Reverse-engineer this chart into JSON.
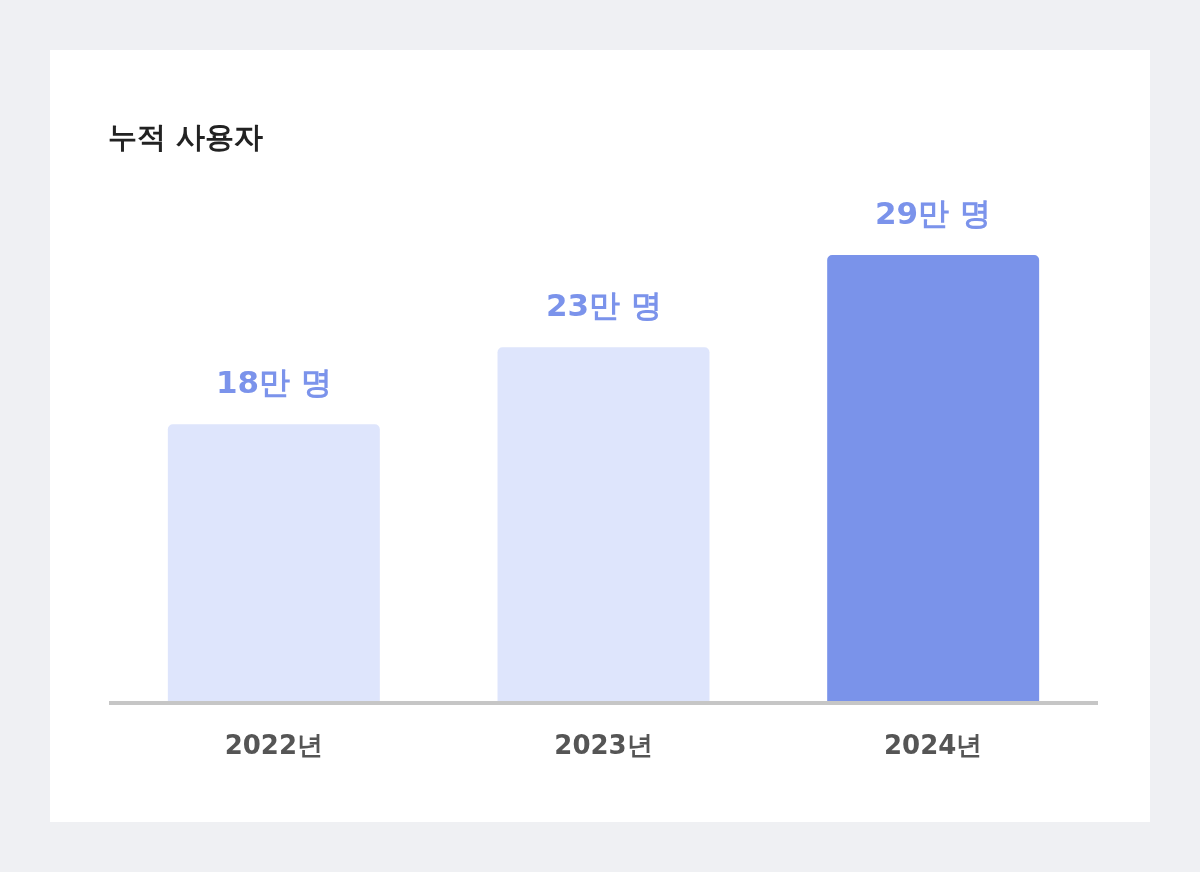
{
  "chart_data": {
    "type": "bar",
    "title": "누적 사용자",
    "categories": [
      "2022년",
      "2023년",
      "2024년"
    ],
    "values": [
      18,
      23,
      29
    ],
    "colors": [
      "#dee5fc",
      "#dee5fc",
      "#7a93ea"
    ],
    "value_labels": [
      "18만 명",
      "23만 명",
      "29만 명"
    ]
  }
}
